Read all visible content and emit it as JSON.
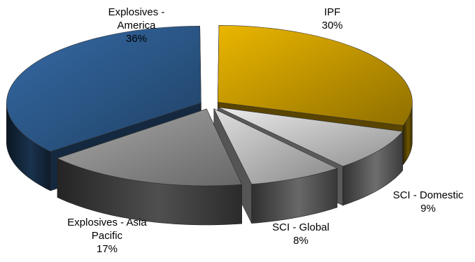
{
  "chart_data": {
    "type": "pie",
    "style": "3d-exploded",
    "title": "",
    "slices": [
      {
        "label_lines": [
          "IPF"
        ],
        "percent_label": "30%",
        "value": 30,
        "color": "#c79a00"
      },
      {
        "label_lines": [
          "SCI - Domestic"
        ],
        "percent_label": "9%",
        "value": 9,
        "color": "#c8c8c8"
      },
      {
        "label_lines": [
          "SCI - Global"
        ],
        "percent_label": "8%",
        "value": 8,
        "color": "#bdbdbd"
      },
      {
        "label_lines": [
          "Explosives - Asia",
          "Pacific"
        ],
        "percent_label": "17%",
        "value": 17,
        "color": "#8f8f8f"
      },
      {
        "label_lines": [
          "Explosives -",
          "America"
        ],
        "percent_label": "36%",
        "value": 36,
        "color": "#2d5a8c"
      }
    ]
  }
}
